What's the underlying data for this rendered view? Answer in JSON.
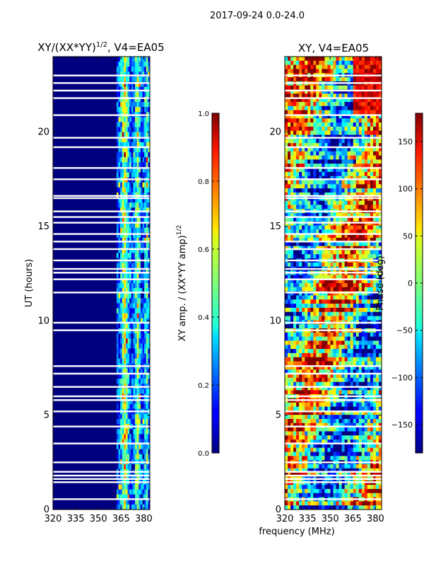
{
  "figure": {
    "suptitle": "2017-09-24 0.0-24.0",
    "xlabel": "frequency (MHz)"
  },
  "chart_data": [
    {
      "type": "heatmap",
      "title": "XY/(XX*YY)",
      "title_exponent": "1/2",
      "title_suffix": ", V4=EA05",
      "ylabel": "UT (hours)",
      "xlim": [
        320,
        384
      ],
      "ylim": [
        0,
        24
      ],
      "xticks": [
        "320",
        "335",
        "350",
        "365",
        "380"
      ],
      "xtick_values": [
        320,
        335,
        350,
        365,
        380
      ],
      "yticks": [
        "0",
        "5",
        "10",
        "15",
        "20"
      ],
      "ytick_values": [
        0,
        5,
        10,
        15,
        20
      ],
      "band_start_mhz": 362,
      "band_end_mhz": 384,
      "colorbar": {
        "label": "XY amp. / (XX*YY amp)",
        "label_exponent": "1/2",
        "range": [
          0.0,
          1.0
        ],
        "ticks": [
          "0.0",
          "0.2",
          "0.4",
          "0.6",
          "0.8",
          "1.0"
        ],
        "tick_values": [
          0.0,
          0.2,
          0.4,
          0.6,
          0.8,
          1.0
        ]
      }
    },
    {
      "type": "heatmap",
      "title": "XY, V4=EA05",
      "xlim": [
        320,
        384
      ],
      "ylim": [
        0,
        24
      ],
      "xticks": [
        "320",
        "335",
        "350",
        "365",
        "380"
      ],
      "xtick_values": [
        320,
        335,
        350,
        365,
        380
      ],
      "yticks": [
        "0",
        "5",
        "10",
        "15",
        "20"
      ],
      "ytick_values": [
        0,
        5,
        10,
        15,
        20
      ],
      "colorbar": {
        "label": "Phase (deg)",
        "range": [
          -180,
          180
        ],
        "ticks": [
          "−150",
          "−100",
          "−50",
          "0",
          "50",
          "100",
          "150"
        ],
        "tick_values": [
          -150,
          -100,
          -50,
          0,
          50,
          100,
          150
        ]
      }
    }
  ],
  "flagged_ut_hours": [
    0.55,
    1.45,
    1.62,
    1.8,
    2.0,
    2.5,
    3.5,
    4.4,
    5.2,
    5.8,
    6.0,
    6.5,
    7.2,
    7.6,
    9.5,
    9.9,
    11.5,
    12.2,
    12.55,
    12.75,
    13.2,
    13.8,
    14.2,
    14.6,
    15.2,
    15.5,
    15.8,
    16.5,
    16.62,
    17.5,
    18.1,
    19.2,
    19.7,
    20.9,
    21.8,
    22.2,
    22.6,
    23.0
  ]
}
